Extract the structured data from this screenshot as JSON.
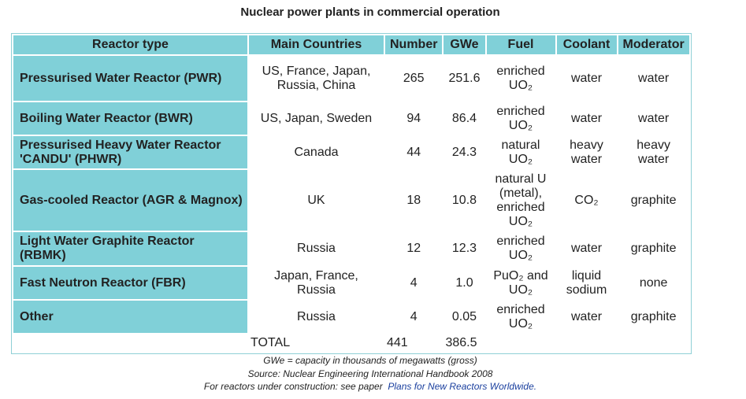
{
  "title": "Nuclear power plants in commercial operation",
  "table": {
    "header": [
      "Reactor type",
      "Main Countries",
      "Number",
      "GWe",
      "Fuel",
      "Coolant",
      "Moderator"
    ],
    "rows": [
      [
        "Pressurised Water Reactor (PWR)",
        "US, France, Japan, Russia, China",
        "265",
        "251.6",
        "enriched UO₂",
        "water",
        "water"
      ],
      [
        "Boiling Water Reactor (BWR)",
        "US, Japan, Sweden",
        "94",
        "86.4",
        "enriched UO₂",
        "water",
        "water"
      ],
      [
        "Pressurised Heavy Water Reactor 'CANDU' (PHWR)",
        "Canada",
        "44",
        "24.3",
        "natural UO₂",
        "heavy water",
        "heavy water"
      ],
      [
        "Gas-cooled Reactor (AGR & Magnox)",
        "UK",
        "18",
        "10.8",
        "natural U (metal), enriched UO₂",
        "CO₂",
        "graphite"
      ],
      [
        "Light Water Graphite Reactor (RBMK)",
        "Russia",
        "12",
        "12.3",
        "enriched UO₂",
        "water",
        "graphite"
      ],
      [
        "Fast Neutron Reactor (FBR)",
        "Japan, France, Russia",
        "4",
        "1.0",
        "PuO₂ and UO₂",
        "liquid sodium",
        "none"
      ],
      [
        "Other",
        "Russia",
        "4",
        "0.05",
        "enriched UO₂",
        "water",
        "graphite"
      ]
    ],
    "total": {
      "label": "TOTAL",
      "number": "441",
      "gwe": "386.5"
    }
  },
  "notes": [
    "GWe = capacity in thousands of megawatts (gross)",
    "Source: Nuclear Engineering International Handbook 2008"
  ],
  "link": {
    "prefix": "For reactors under construction: see paper",
    "text": "Plans for New Reactors Worldwide."
  }
}
